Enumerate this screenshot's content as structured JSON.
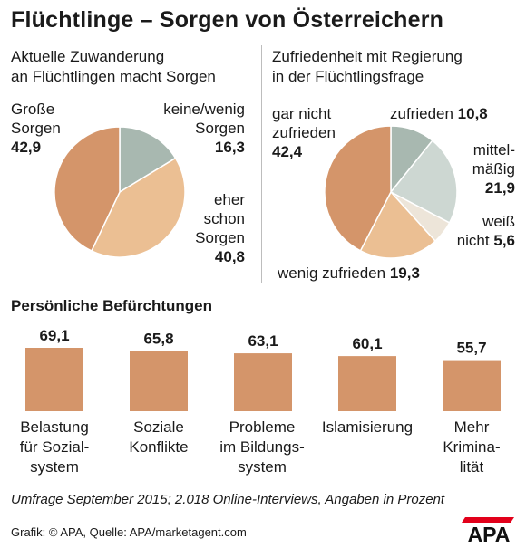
{
  "title": "Flüchtlinge – Sorgen von Österreichern",
  "chart_data": [
    {
      "type": "pie",
      "title": "Aktuelle Zuwanderung\nan Flüchtlingen macht Sorgen",
      "slices": [
        {
          "label": "keine/wenig\nSorgen",
          "value": 16.3,
          "value_text": "16,3",
          "color": "#a8b8b0"
        },
        {
          "label": "eher\nschon\nSorgen",
          "value": 40.8,
          "value_text": "40,8",
          "color": "#ebbf93"
        },
        {
          "label": "Große\nSorgen",
          "value": 42.9,
          "value_text": "42,9",
          "color": "#d4956a"
        }
      ]
    },
    {
      "type": "pie",
      "title": "Zufriedenheit mit Regierung\nin der Flüchtlingsfrage",
      "slices": [
        {
          "label": "zufrieden",
          "value": 10.8,
          "value_text": "10,8",
          "color": "#a8b8b0"
        },
        {
          "label": "mittel-\nmäßig",
          "value": 21.9,
          "value_text": "21,9",
          "color": "#cdd7d2"
        },
        {
          "label": "weiß\nnicht",
          "value": 5.6,
          "value_text": "5,6",
          "color": "#ede5d9"
        },
        {
          "label": "wenig zufrieden",
          "value": 19.3,
          "value_text": "19,3",
          "color": "#ebbf93"
        },
        {
          "label": "gar nicht\nzufrieden",
          "value": 42.4,
          "value_text": "42,4",
          "color": "#d4956a"
        }
      ]
    },
    {
      "type": "bar",
      "title": "Persönliche Befürchtungen",
      "categories": [
        "Belastung\nfür Sozial-\nsystem",
        "Soziale\nKonflikte",
        "Probleme\nim Bildungs-\nsystem",
        "Islamisierung",
        "Mehr\nKrimina-\nlität"
      ],
      "values": [
        69.1,
        65.8,
        63.1,
        60.1,
        55.7
      ],
      "value_labels": [
        "69,1",
        "65,8",
        "63,1",
        "60,1",
        "55,7"
      ],
      "color": "#d4956a"
    }
  ],
  "footnote": "Umfrage September 2015; 2.018 Online-Interviews, Angaben in Prozent",
  "source": "Grafik: © APA, Quelle: APA/marketagent.com",
  "logo": "APA"
}
